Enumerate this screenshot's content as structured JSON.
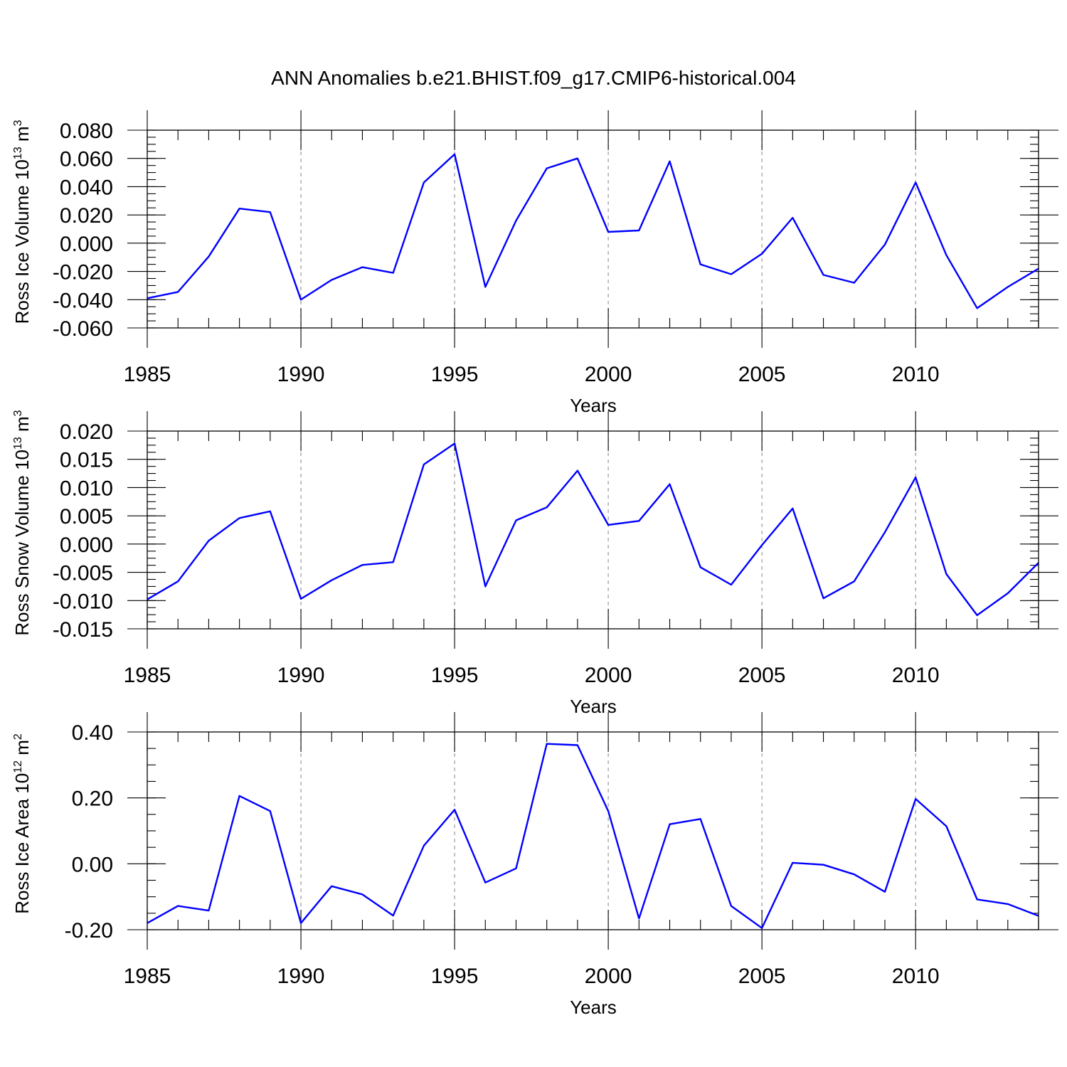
{
  "page": {
    "title": "ANN Anomalies b.e21.BHIST.f09_g17.CMIP6-historical.004"
  },
  "colors": {
    "series": "#0000ff",
    "grid": "#999999",
    "axis": "#000000"
  },
  "chart_data": [
    {
      "type": "line",
      "ylabel": {
        "main": "Ross Ice Volume 10",
        "sup": "13",
        "unit": " m",
        "unit_sup": "3"
      },
      "xlabel": "Years",
      "xlim": [
        1985,
        2014
      ],
      "ylim": [
        -0.06,
        0.08
      ],
      "x_ticks": [
        1985,
        1990,
        1995,
        2000,
        2005,
        2010
      ],
      "x_tick_labels": [
        "1985",
        "1990",
        "1995",
        "2000",
        "2005",
        "2010"
      ],
      "y_ticks": [
        -0.06,
        -0.04,
        -0.02,
        0.0,
        0.02,
        0.04,
        0.06,
        0.08
      ],
      "y_tick_labels": [
        "-0.060",
        "-0.040",
        "-0.020",
        "0.000",
        "0.020",
        "0.040",
        "0.060",
        "0.080"
      ],
      "y_minor_step": 0.005,
      "grid": "vertical dashed at major x ticks",
      "x": [
        1985,
        1986,
        1987,
        1988,
        1989,
        1990,
        1991,
        1992,
        1993,
        1994,
        1995,
        1996,
        1997,
        1998,
        1999,
        2000,
        2001,
        2002,
        2003,
        2004,
        2005,
        2006,
        2007,
        2008,
        2009,
        2010,
        2011,
        2012,
        2013,
        2014
      ],
      "series": [
        {
          "values": [
            -0.039,
            -0.0345,
            -0.0095,
            0.0245,
            0.022,
            -0.04,
            -0.026,
            -0.017,
            -0.021,
            0.043,
            0.063,
            -0.031,
            0.016,
            0.053,
            0.06,
            0.008,
            0.009,
            0.058,
            -0.015,
            -0.022,
            -0.0075,
            0.018,
            -0.0225,
            -0.028,
            -0.001,
            0.043,
            -0.0085,
            -0.046,
            -0.031,
            -0.018
          ]
        }
      ]
    },
    {
      "type": "line",
      "ylabel": {
        "main": "Ross Snow Volume 10",
        "sup": "13",
        "unit": " m",
        "unit_sup": "3"
      },
      "xlabel": "Years",
      "xlim": [
        1985,
        2014
      ],
      "ylim": [
        -0.015,
        0.02
      ],
      "x_ticks": [
        1985,
        1990,
        1995,
        2000,
        2005,
        2010
      ],
      "x_tick_labels": [
        "1985",
        "1990",
        "1995",
        "2000",
        "2005",
        "2010"
      ],
      "y_ticks": [
        -0.015,
        -0.01,
        -0.005,
        0.0,
        0.005,
        0.01,
        0.015,
        0.02
      ],
      "y_tick_labels": [
        "-0.015",
        "-0.010",
        "-0.005",
        "0.000",
        "0.005",
        "0.010",
        "0.015",
        "0.020"
      ],
      "y_minor_step": 0.00125,
      "grid": "vertical dashed at major x ticks",
      "x": [
        1985,
        1986,
        1987,
        1988,
        1989,
        1990,
        1991,
        1992,
        1993,
        1994,
        1995,
        1996,
        1997,
        1998,
        1999,
        2000,
        2001,
        2002,
        2003,
        2004,
        2005,
        2006,
        2007,
        2008,
        2009,
        2010,
        2011,
        2012,
        2013,
        2014
      ],
      "series": [
        {
          "values": [
            -0.0098,
            -0.0066,
            0.0006,
            0.0046,
            0.0058,
            -0.0097,
            -0.0064,
            -0.0037,
            -0.0032,
            0.0141,
            0.0178,
            -0.0075,
            0.0042,
            0.0065,
            0.013,
            0.0034,
            0.0041,
            0.0106,
            -0.0041,
            -0.0072,
            -0.0002,
            0.0063,
            -0.0096,
            -0.0066,
            0.0021,
            0.0118,
            -0.0053,
            -0.0126,
            -0.0087,
            -0.0033
          ]
        }
      ]
    },
    {
      "type": "line",
      "ylabel": {
        "main": "Ross Ice Area 10",
        "sup": "12",
        "unit": " m",
        "unit_sup": "2"
      },
      "xlabel": "Years",
      "xlim": [
        1985,
        2014
      ],
      "ylim": [
        -0.2,
        0.4
      ],
      "x_ticks": [
        1985,
        1990,
        1995,
        2000,
        2005,
        2010
      ],
      "x_tick_labels": [
        "1985",
        "1990",
        "1995",
        "2000",
        "2005",
        "2010"
      ],
      "y_ticks": [
        -0.2,
        0.0,
        0.2,
        0.4
      ],
      "y_tick_labels": [
        "-0.20",
        "0.00",
        "0.20",
        "0.40"
      ],
      "y_minor_step": 0.05,
      "grid": "vertical dashed at major x ticks",
      "x": [
        1985,
        1986,
        1987,
        1988,
        1989,
        1990,
        1991,
        1992,
        1993,
        1994,
        1995,
        1996,
        1997,
        1998,
        1999,
        2000,
        2001,
        2002,
        2003,
        2004,
        2005,
        2006,
        2007,
        2008,
        2009,
        2010,
        2011,
        2012,
        2013,
        2014
      ],
      "series": [
        {
          "values": [
            -0.18,
            -0.128,
            -0.142,
            0.206,
            0.16,
            -0.18,
            -0.068,
            -0.093,
            -0.157,
            0.055,
            0.164,
            -0.057,
            -0.014,
            0.364,
            0.36,
            0.16,
            -0.166,
            0.12,
            0.136,
            -0.128,
            -0.195,
            0.003,
            -0.003,
            -0.032,
            -0.085,
            0.197,
            0.114,
            -0.108,
            -0.122,
            -0.158
          ]
        }
      ]
    }
  ]
}
